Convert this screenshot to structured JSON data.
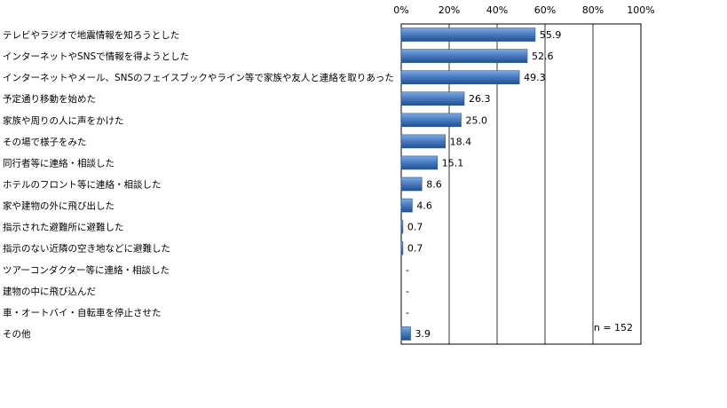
{
  "chart_data": {
    "type": "bar",
    "orientation": "horizontal",
    "categories": [
      "テレビやラジオで地震情報を知ろうとした",
      "インターネットやSNSで情報を得ようとした",
      "インターネットやメール、SNSのフェイスブックやライン等で家族や友人と連絡を取りあった",
      "予定通り移動を始めた",
      "家族や周りの人に声をかけた",
      "その場で様子をみた",
      "同行者等に連絡・相談した",
      "ホテルのフロント等に連絡・相談した",
      "家や建物の外に飛び出した",
      "指示された避難所に避難した",
      "指示のない近隣の空き地などに避難した",
      "ツアーコンダクター等に連絡・相談した",
      "建物の中に飛び込んだ",
      "車・オートバイ・自転車を停止させた",
      "その他"
    ],
    "values": [
      55.9,
      52.6,
      49.3,
      26.3,
      25.0,
      18.4,
      15.1,
      8.6,
      4.6,
      0.7,
      0.7,
      null,
      null,
      null,
      3.9
    ],
    "data_labels": [
      "55.9",
      "52.6",
      "49.3",
      "26.3",
      "25.0",
      "18.4",
      "15.1",
      "8.6",
      "4.6",
      "0.7",
      "0.7",
      "-",
      "-",
      "-",
      "3.9"
    ],
    "x_ticks": [
      "0%",
      "20%",
      "40%",
      "60%",
      "80%",
      "100%"
    ],
    "xlim": [
      0,
      100
    ],
    "grid": true,
    "bar_color": "#4a7fc4",
    "annotation": "n = 152"
  }
}
